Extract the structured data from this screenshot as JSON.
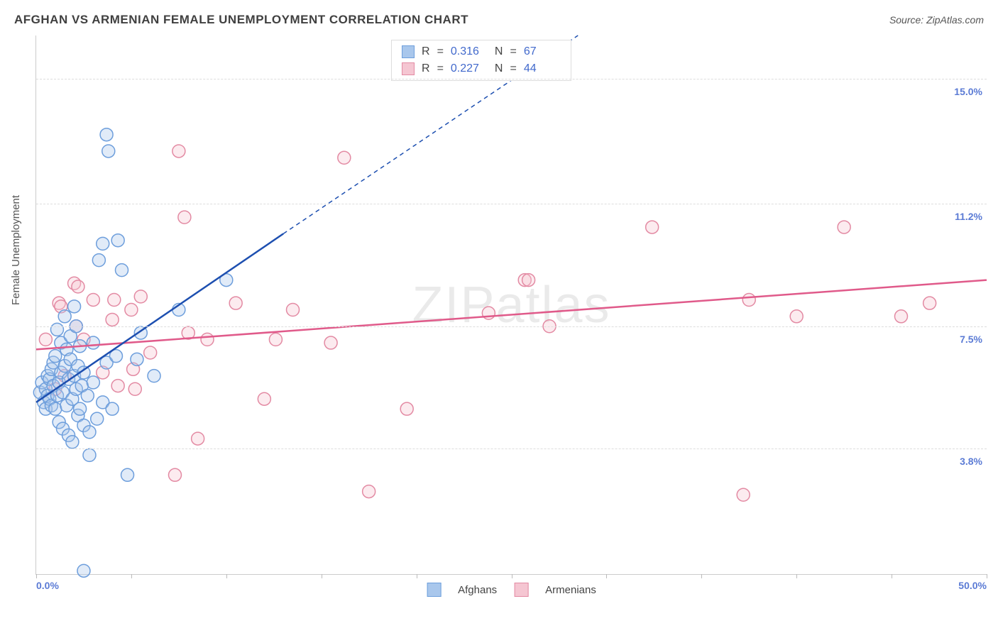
{
  "title": "AFGHAN VS ARMENIAN FEMALE UNEMPLOYMENT CORRELATION CHART",
  "source_label": "Source: ZipAtlas.com",
  "ylabel": "Female Unemployment",
  "watermark": "ZIPatlas",
  "chart": {
    "type": "scatter",
    "xlim": [
      0,
      50
    ],
    "ylim": [
      0,
      16.3
    ],
    "y_grid": [
      3.8,
      7.5,
      11.2,
      15.0
    ],
    "y_tick_labels": [
      "3.8%",
      "7.5%",
      "11.2%",
      "15.0%"
    ],
    "x_tick_count": 11,
    "x_min_label": "0.0%",
    "x_max_label": "50.0%",
    "marker_radius": 9,
    "background": "#ffffff",
    "grid_color": "#dddddd",
    "axis_color": "#cccccc",
    "tick_label_color": "#5b7bd5",
    "title_color": "#404040",
    "title_fontsize": 17,
    "label_fontsize": 15
  },
  "series": {
    "afghans": {
      "label": "Afghans",
      "fill": "#a9c7ec",
      "stroke": "#6d9edc",
      "regression_color": "#1d4fb0",
      "R": "0.316",
      "N": "67",
      "regression": {
        "x1": 0,
        "y1": 5.2,
        "x2": 13,
        "y2": 10.3,
        "dash_to_x": 28.5,
        "dash_to_y": 16.3
      },
      "points": [
        [
          0.2,
          5.5
        ],
        [
          0.3,
          5.8
        ],
        [
          0.4,
          5.2
        ],
        [
          0.5,
          5.0
        ],
        [
          0.5,
          5.6
        ],
        [
          0.6,
          5.4
        ],
        [
          0.6,
          6.0
        ],
        [
          0.7,
          5.3
        ],
        [
          0.7,
          5.9
        ],
        [
          0.8,
          5.1
        ],
        [
          0.8,
          6.2
        ],
        [
          0.9,
          5.7
        ],
        [
          0.9,
          6.4
        ],
        [
          1.0,
          5.0
        ],
        [
          1.0,
          6.6
        ],
        [
          1.1,
          5.4
        ],
        [
          1.1,
          7.4
        ],
        [
          1.2,
          4.6
        ],
        [
          1.2,
          5.8
        ],
        [
          1.3,
          6.1
        ],
        [
          1.3,
          7.0
        ],
        [
          1.4,
          4.4
        ],
        [
          1.4,
          5.5
        ],
        [
          1.5,
          6.3
        ],
        [
          1.5,
          7.8
        ],
        [
          1.6,
          5.1
        ],
        [
          1.6,
          6.8
        ],
        [
          1.7,
          4.2
        ],
        [
          1.7,
          5.9
        ],
        [
          1.8,
          6.5
        ],
        [
          1.8,
          7.2
        ],
        [
          1.9,
          4.0
        ],
        [
          1.9,
          5.3
        ],
        [
          2.0,
          6.0
        ],
        [
          2.0,
          8.1
        ],
        [
          2.1,
          5.6
        ],
        [
          2.1,
          7.5
        ],
        [
          2.2,
          4.8
        ],
        [
          2.2,
          6.3
        ],
        [
          2.3,
          5.0
        ],
        [
          2.3,
          6.9
        ],
        [
          2.4,
          5.7
        ],
        [
          2.5,
          4.5
        ],
        [
          2.5,
          6.1
        ],
        [
          2.7,
          5.4
        ],
        [
          2.8,
          4.3
        ],
        [
          2.8,
          3.6
        ],
        [
          3.0,
          5.8
        ],
        [
          3.0,
          7.0
        ],
        [
          3.2,
          4.7
        ],
        [
          3.3,
          9.5
        ],
        [
          3.5,
          5.2
        ],
        [
          3.5,
          10.0
        ],
        [
          3.7,
          6.4
        ],
        [
          3.7,
          13.3
        ],
        [
          3.8,
          12.8
        ],
        [
          4.0,
          5.0
        ],
        [
          4.2,
          6.6
        ],
        [
          4.3,
          10.1
        ],
        [
          4.5,
          9.2
        ],
        [
          4.8,
          3.0
        ],
        [
          5.3,
          6.5
        ],
        [
          5.5,
          7.3
        ],
        [
          6.2,
          6.0
        ],
        [
          7.5,
          8.0
        ],
        [
          10.0,
          8.9
        ],
        [
          2.5,
          0.1
        ]
      ]
    },
    "armenians": {
      "label": "Armenians",
      "fill": "#f5c6d2",
      "stroke": "#e38aa3",
      "regression_color": "#e05a8a",
      "R": "0.227",
      "N": "44",
      "regression": {
        "x1": 0,
        "y1": 6.8,
        "x2": 50,
        "y2": 8.9
      },
      "points": [
        [
          0.5,
          7.1
        ],
        [
          1.0,
          5.6
        ],
        [
          1.2,
          8.2
        ],
        [
          1.5,
          6.0
        ],
        [
          2.0,
          8.8
        ],
        [
          2.1,
          7.5
        ],
        [
          2.2,
          8.7
        ],
        [
          2.5,
          7.1
        ],
        [
          3.0,
          8.3
        ],
        [
          3.5,
          6.1
        ],
        [
          4.0,
          7.7
        ],
        [
          4.1,
          8.3
        ],
        [
          4.3,
          5.7
        ],
        [
          5.0,
          8.0
        ],
        [
          5.1,
          6.2
        ],
        [
          5.2,
          5.6
        ],
        [
          5.5,
          8.4
        ],
        [
          6.0,
          6.7
        ],
        [
          7.3,
          3.0
        ],
        [
          7.5,
          12.8
        ],
        [
          7.8,
          10.8
        ],
        [
          8.0,
          7.3
        ],
        [
          8.5,
          4.1
        ],
        [
          9.0,
          7.1
        ],
        [
          10.5,
          8.2
        ],
        [
          12.0,
          5.3
        ],
        [
          12.6,
          7.1
        ],
        [
          13.5,
          8.0
        ],
        [
          15.5,
          7.0
        ],
        [
          16.2,
          12.6
        ],
        [
          17.5,
          2.5
        ],
        [
          19.5,
          5.0
        ],
        [
          23.8,
          7.9
        ],
        [
          25.7,
          8.9
        ],
        [
          25.9,
          8.9
        ],
        [
          27.0,
          7.5
        ],
        [
          32.4,
          10.5
        ],
        [
          37.2,
          2.4
        ],
        [
          37.5,
          8.3
        ],
        [
          40.0,
          7.8
        ],
        [
          42.5,
          10.5
        ],
        [
          45.5,
          7.8
        ],
        [
          47.0,
          8.2
        ],
        [
          1.3,
          8.1
        ]
      ]
    }
  },
  "corr_legend": {
    "R_label": "R",
    "N_label": "N",
    "eq": "="
  }
}
